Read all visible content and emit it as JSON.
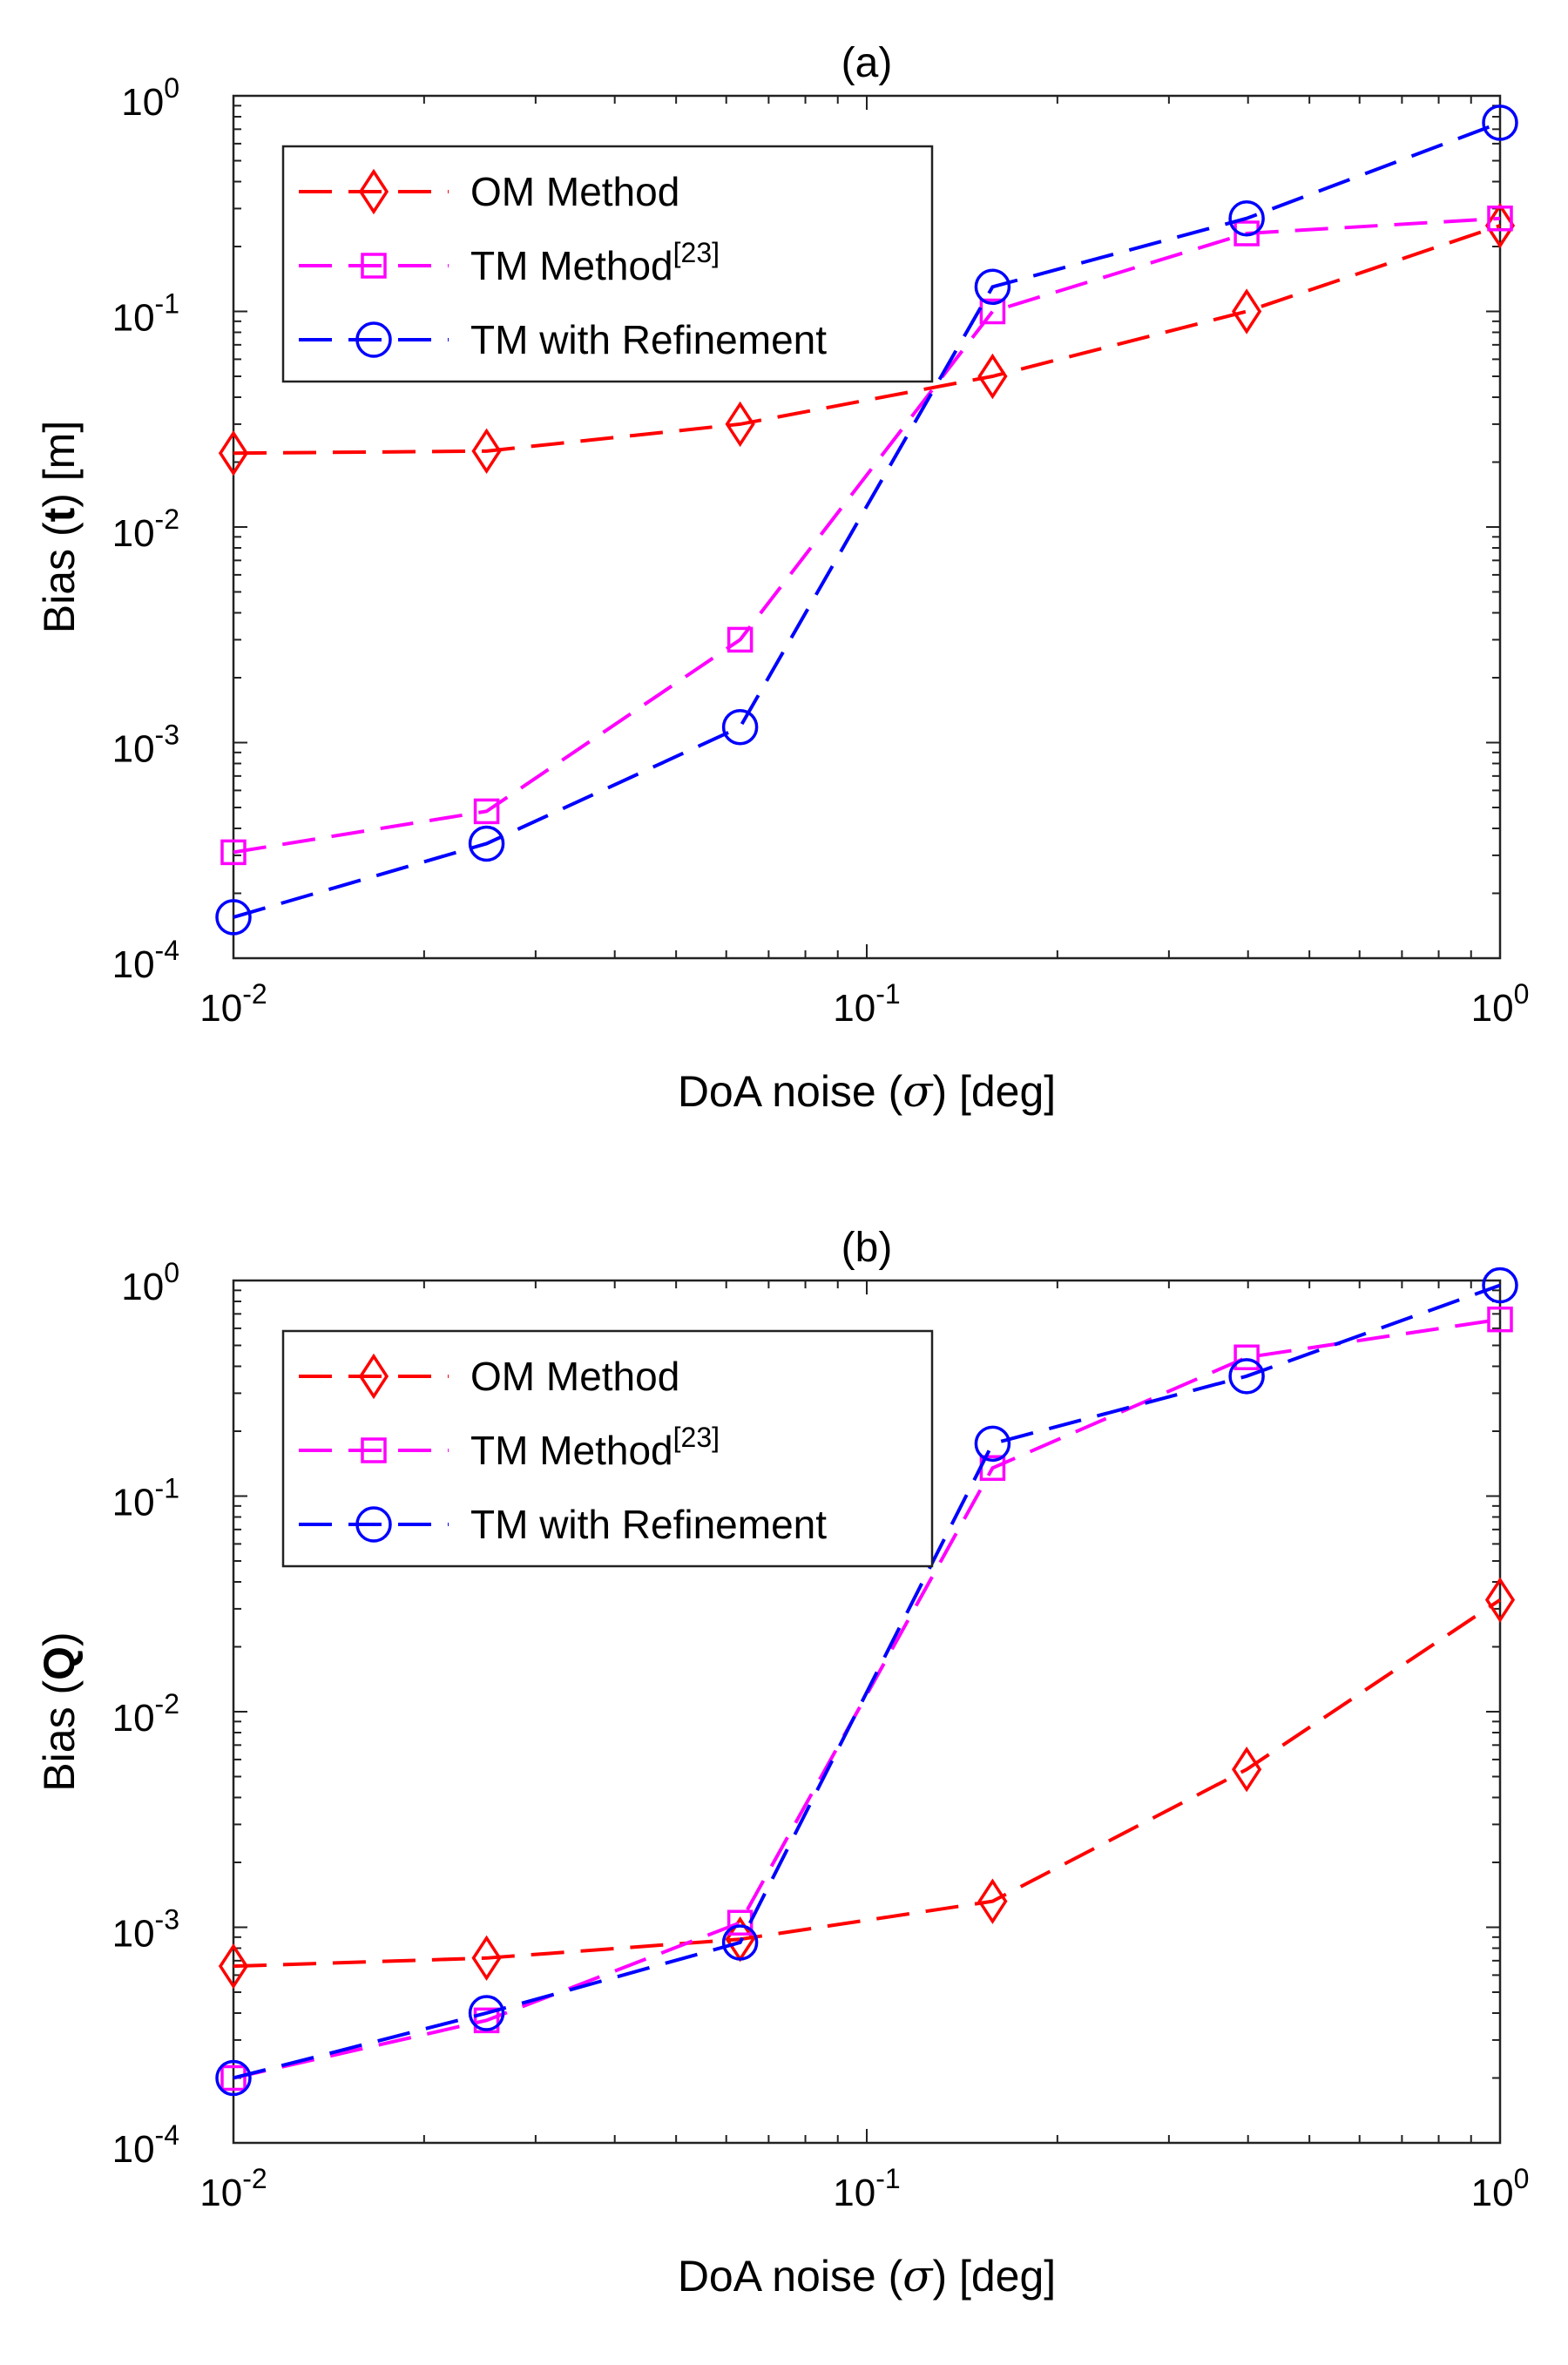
{
  "chart_data": [
    {
      "type": "line",
      "title": "(a)",
      "xlabel_prefix": "DoA noise (",
      "xlabel_symbol": "σ",
      "xlabel_suffix": ") [deg]",
      "ylabel_prefix": "Bias (",
      "ylabel_symbol": "t",
      "ylabel_suffix": ") [m]",
      "xscale": "log",
      "yscale": "log",
      "xlim": [
        0.01,
        1
      ],
      "ylim": [
        0.0001,
        1
      ],
      "x_ticks": [
        {
          "base": "10",
          "exp": "-2",
          "value": 0.01
        },
        {
          "base": "10",
          "exp": "-1",
          "value": 0.1
        },
        {
          "base": "10",
          "exp": "0",
          "value": 1
        }
      ],
      "y_ticks": [
        {
          "base": "10",
          "exp": "-4",
          "value": 0.0001
        },
        {
          "base": "10",
          "exp": "-3",
          "value": 0.001
        },
        {
          "base": "10",
          "exp": "-2",
          "value": 0.01
        },
        {
          "base": "10",
          "exp": "-1",
          "value": 0.1
        },
        {
          "base": "10",
          "exp": "0",
          "value": 1
        }
      ],
      "legend_position": "top-left",
      "x": [
        0.01,
        0.0251,
        0.0631,
        0.158,
        0.398,
        1.0
      ],
      "series": [
        {
          "name": "OM Method",
          "name_sup": "",
          "color": "#ff0000",
          "marker": "diamond",
          "values": [
            0.022,
            0.0225,
            0.03,
            0.05,
            0.1,
            0.25
          ]
        },
        {
          "name": "TM Method",
          "name_sup": "[23]",
          "color": "#ff00ff",
          "marker": "square",
          "values": [
            0.00031,
            0.00048,
            0.003,
            0.1,
            0.23,
            0.27
          ]
        },
        {
          "name": "TM with Refinement",
          "name_sup": "",
          "color": "#0000ff",
          "marker": "circle",
          "values": [
            0.000155,
            0.00034,
            0.00118,
            0.13,
            0.27,
            0.75
          ]
        }
      ]
    },
    {
      "type": "line",
      "title": "(b)",
      "xlabel_prefix": "DoA noise (",
      "xlabel_symbol": "σ",
      "xlabel_suffix": ") [deg]",
      "ylabel_prefix": "Bias (",
      "ylabel_symbol": "Q",
      "ylabel_suffix": ")",
      "xscale": "log",
      "yscale": "log",
      "xlim": [
        0.01,
        1
      ],
      "ylim": [
        0.0001,
        1
      ],
      "x_ticks": [
        {
          "base": "10",
          "exp": "-2",
          "value": 0.01
        },
        {
          "base": "10",
          "exp": "-1",
          "value": 0.1
        },
        {
          "base": "10",
          "exp": "0",
          "value": 1
        }
      ],
      "y_ticks": [
        {
          "base": "10",
          "exp": "-4",
          "value": 0.0001
        },
        {
          "base": "10",
          "exp": "-3",
          "value": 0.001
        },
        {
          "base": "10",
          "exp": "-2",
          "value": 0.01
        },
        {
          "base": "10",
          "exp": "-1",
          "value": 0.1
        },
        {
          "base": "10",
          "exp": "0",
          "value": 1
        }
      ],
      "legend_position": "top-left",
      "x": [
        0.01,
        0.0251,
        0.0631,
        0.158,
        0.398,
        1.0
      ],
      "series": [
        {
          "name": "OM Method",
          "name_sup": "",
          "color": "#ff0000",
          "marker": "diamond",
          "values": [
            0.00066,
            0.00072,
            0.00088,
            0.00132,
            0.0054,
            0.033
          ]
        },
        {
          "name": "TM Method",
          "name_sup": "[23]",
          "color": "#ff00ff",
          "marker": "square",
          "values": [
            0.0002,
            0.00037,
            0.00105,
            0.135,
            0.44,
            0.66
          ]
        },
        {
          "name": "TM with Refinement",
          "name_sup": "",
          "color": "#0000ff",
          "marker": "circle",
          "values": [
            0.0002,
            0.0004,
            0.00085,
            0.175,
            0.36,
            0.95
          ]
        }
      ]
    }
  ]
}
